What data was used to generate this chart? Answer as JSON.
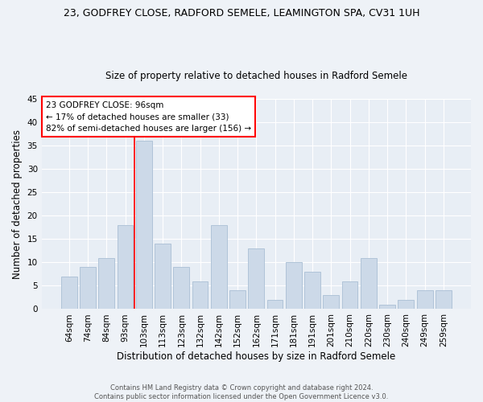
{
  "title1": "23, GODFREY CLOSE, RADFORD SEMELE, LEAMINGTON SPA, CV31 1UH",
  "title2": "Size of property relative to detached houses in Radford Semele",
  "xlabel": "Distribution of detached houses by size in Radford Semele",
  "ylabel": "Number of detached properties",
  "bar_labels": [
    "64sqm",
    "74sqm",
    "84sqm",
    "93sqm",
    "103sqm",
    "113sqm",
    "123sqm",
    "132sqm",
    "142sqm",
    "152sqm",
    "162sqm",
    "171sqm",
    "181sqm",
    "191sqm",
    "201sqm",
    "210sqm",
    "220sqm",
    "230sqm",
    "240sqm",
    "249sqm",
    "259sqm"
  ],
  "bar_values": [
    7,
    9,
    11,
    18,
    36,
    14,
    9,
    6,
    18,
    4,
    13,
    2,
    10,
    8,
    3,
    6,
    11,
    1,
    2,
    4,
    4
  ],
  "bar_color": "#ccd9e8",
  "bar_edge_color": "#b0c4d8",
  "annotation_line1": "23 GODFREY CLOSE: 96sqm",
  "annotation_line2": "← 17% of detached houses are smaller (33)",
  "annotation_line3": "82% of semi-detached houses are larger (156) →",
  "annotation_box_color": "white",
  "annotation_box_edge_color": "red",
  "vline_color": "red",
  "vline_x_index": 3,
  "ylim": [
    0,
    45
  ],
  "yticks": [
    0,
    5,
    10,
    15,
    20,
    25,
    30,
    35,
    40,
    45
  ],
  "footer_text": "Contains HM Land Registry data © Crown copyright and database right 2024.\nContains public sector information licensed under the Open Government Licence v3.0.",
  "bg_color": "#eef2f7",
  "plot_bg_color": "#e8eef5",
  "grid_color": "white"
}
